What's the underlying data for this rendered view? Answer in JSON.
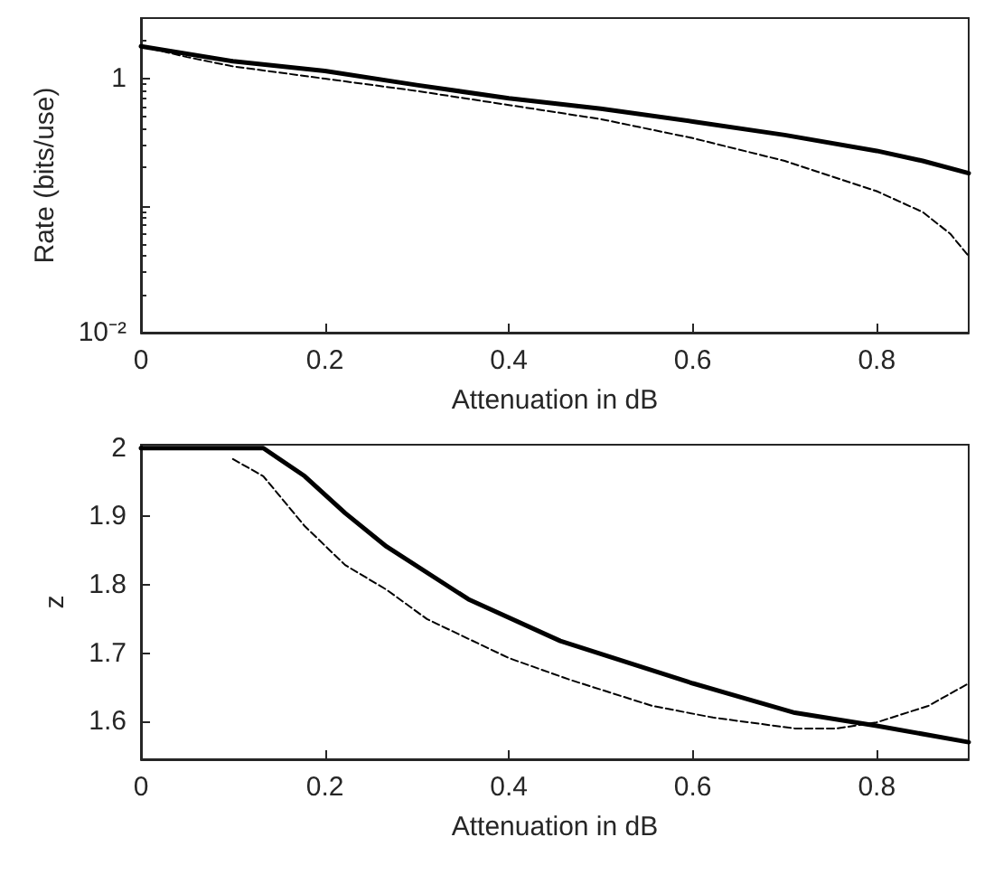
{
  "chart_data": [
    {
      "type": "line",
      "xlabel": "Attenuation in dB",
      "ylabel": "Rate (bits/use)",
      "log": "y",
      "xlim": [
        0,
        0.9
      ],
      "xticks": [
        0,
        0.2,
        0.4,
        0.6,
        0.8
      ],
      "ylim": [
        0.01,
        3
      ],
      "yticks": [
        {
          "value": 0.01,
          "label": "10⁻²"
        },
        {
          "value": 0.1,
          "label": null
        },
        1
      ],
      "series": [
        {
          "color": "#000000",
          "line_style": "solid",
          "x": [
            0,
            0.1,
            0.2,
            0.3,
            0.4,
            0.5,
            0.6,
            0.7,
            0.8,
            0.85,
            0.9
          ],
          "values": [
            1.8,
            1.37,
            1.15,
            0.89,
            0.7,
            0.58,
            0.46,
            0.36,
            0.27,
            0.225,
            0.18
          ]
        },
        {
          "color": "#000000",
          "line_style": "dashed",
          "x": [
            0,
            0.05,
            0.1,
            0.2,
            0.3,
            0.4,
            0.5,
            0.6,
            0.7,
            0.8,
            0.85,
            0.88,
            0.9
          ],
          "values": [
            1.8,
            1.48,
            1.25,
            1.0,
            0.8,
            0.62,
            0.48,
            0.34,
            0.225,
            0.13,
            0.089,
            0.06,
            0.04
          ]
        }
      ]
    },
    {
      "type": "line",
      "xlabel": "Attenuation in dB",
      "ylabel": "z",
      "xlim": [
        0,
        0.9
      ],
      "xticks": [
        0,
        0.2,
        0.4,
        0.6,
        0.8
      ],
      "ylim": [
        1.545,
        2.005
      ],
      "yticks": [
        1.6,
        1.7,
        1.8,
        1.9,
        2
      ],
      "series": [
        {
          "color": "#000000",
          "line_style": "solid",
          "x": [
            0,
            0.133,
            0.178,
            0.222,
            0.267,
            0.356,
            0.456,
            0.6,
            0.711,
            0.8,
            0.9
          ],
          "values": [
            2,
            2,
            1.959,
            1.905,
            1.856,
            1.779,
            1.718,
            1.656,
            1.613,
            1.594,
            1.57
          ]
        },
        {
          "color": "#000000",
          "line_style": "dashed",
          "x": [
            0.1,
            0.133,
            0.178,
            0.222,
            0.267,
            0.311,
            0.4,
            0.467,
            0.556,
            0.622,
            0.711,
            0.756,
            0.8,
            0.856,
            0.9
          ],
          "values": [
            1.984,
            1.959,
            1.886,
            1.829,
            1.793,
            1.75,
            1.693,
            1.661,
            1.623,
            1.606,
            1.59,
            1.59,
            1.599,
            1.623,
            1.656
          ]
        }
      ]
    }
  ]
}
